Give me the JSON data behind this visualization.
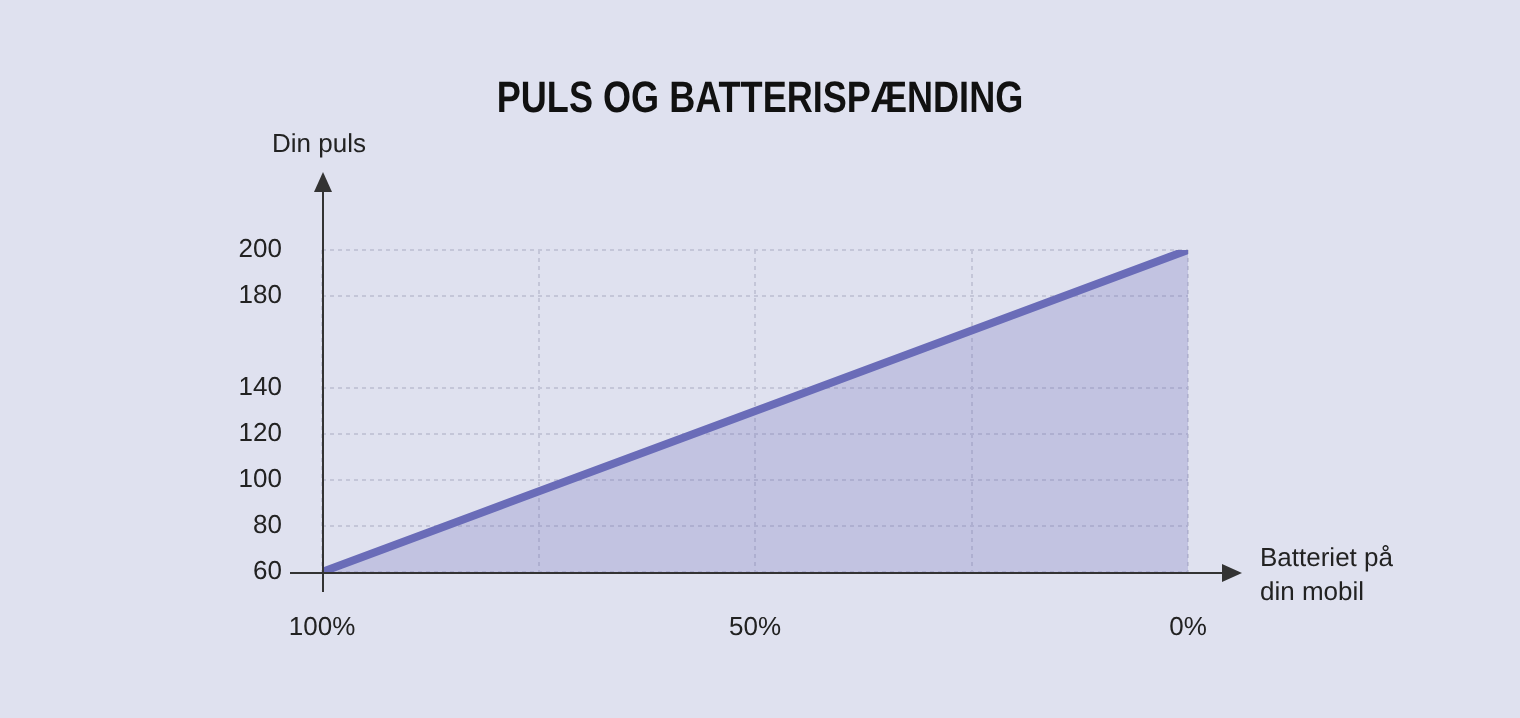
{
  "chart_data": {
    "type": "area",
    "title": "PULS OG BATTERISPÆNDING",
    "xlabel": "Batteriet på\ndin mobil",
    "ylabel": "Din puls",
    "x": [
      100,
      0
    ],
    "series": [
      {
        "color": "#6a6cb8",
        "values": [
          60,
          200
        ]
      }
    ],
    "xlim": [
      100,
      0
    ],
    "xticks": [
      {
        "value": 100,
        "label": "100%"
      },
      {
        "value": 75,
        "label": null
      },
      {
        "value": 50,
        "label": "50%"
      },
      {
        "value": 25,
        "label": null
      },
      {
        "value": 0,
        "label": "0%"
      }
    ],
    "ylim": [
      60,
      200
    ],
    "yticks": [
      60,
      80,
      100,
      120,
      140,
      180,
      200
    ],
    "grid": true,
    "legend": false,
    "marker": "none",
    "line_style": "solid"
  }
}
